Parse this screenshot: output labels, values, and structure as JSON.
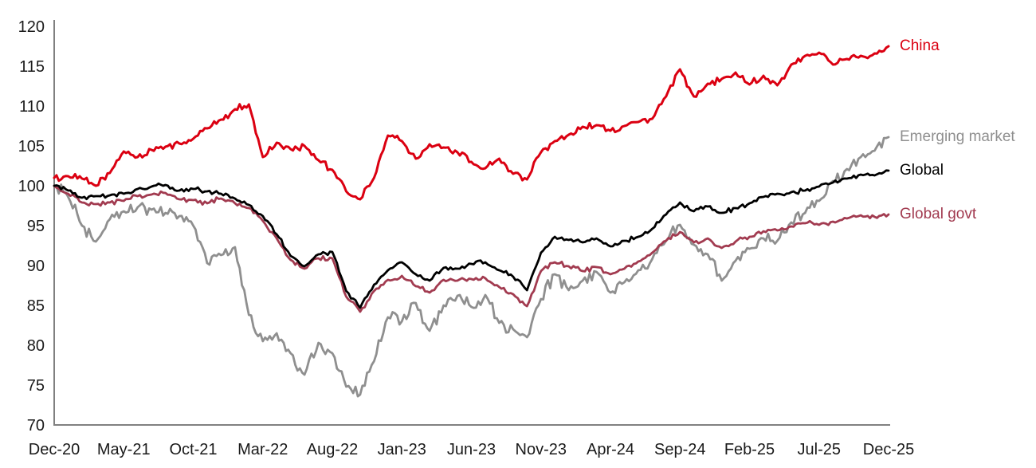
{
  "page": {
    "background": "#ffffff",
    "title": ""
  },
  "chart_data": {
    "type": "line",
    "title": "",
    "grid": false,
    "legend_position": "right-of-line-ends",
    "axis_color": "#808080",
    "tick_label_color": "#1a1a1a",
    "x_axis": {
      "unit": "month",
      "start": "Dec-20",
      "end": "Dec-25",
      "tick_labels": [
        "Dec-20",
        "May-21",
        "Oct-21",
        "Mar-22",
        "Aug-22",
        "Jan-23",
        "Jun-23",
        "Nov-23",
        "Apr-24",
        "Sep-24",
        "Feb-25",
        "Jul-25",
        "Dec-25"
      ],
      "tick_month_indices": [
        0,
        5,
        10,
        15,
        20,
        25,
        30,
        35,
        40,
        45,
        50,
        55,
        60
      ]
    },
    "y_axis": {
      "min": 70,
      "max": 120,
      "tick_labels": [
        "70",
        "75",
        "80",
        "85",
        "90",
        "95",
        "100",
        "105",
        "110",
        "115",
        "120"
      ]
    },
    "frequency": "monthly values from Dec-20 to Dec-25 (index rebased to 100)",
    "series": [
      {
        "name": "China",
        "color": "#db0011",
        "values": [
          101.0,
          101.2,
          100.9,
          100.0,
          101.6,
          104.3,
          103.6,
          104.5,
          104.9,
          105.3,
          105.9,
          107.2,
          108.3,
          109.6,
          110.2,
          103.6,
          105.4,
          104.6,
          105.0,
          103.2,
          102.0,
          99.3,
          98.3,
          101.0,
          106.3,
          105.6,
          103.4,
          105.2,
          104.8,
          104.2,
          103.0,
          102.2,
          103.4,
          101.5,
          100.8,
          104.2,
          105.6,
          106.4,
          107.4,
          107.6,
          106.9,
          107.5,
          108.0,
          108.4,
          111.2,
          114.6,
          111.2,
          112.8,
          113.4,
          114.2,
          112.7,
          113.8,
          112.6,
          115.2,
          116.3,
          116.7,
          115.2,
          115.9,
          116.3,
          116.6,
          117.5
        ]
      },
      {
        "name": "Emerging market",
        "color": "#8f8f8f",
        "values": [
          100.0,
          98.6,
          95.0,
          93.0,
          95.8,
          96.8,
          97.3,
          97.0,
          96.6,
          96.2,
          95.0,
          90.3,
          91.3,
          92.3,
          83.8,
          80.5,
          81.5,
          79.0,
          76.3,
          80.3,
          79.0,
          74.8,
          73.8,
          78.0,
          83.5,
          83.0,
          85.3,
          81.8,
          85.0,
          86.2,
          84.8,
          86.3,
          82.8,
          82.0,
          81.0,
          85.8,
          88.9,
          86.9,
          88.1,
          89.2,
          86.6,
          87.9,
          89.4,
          90.8,
          93.1,
          95.1,
          92.6,
          91.4,
          88.1,
          90.6,
          92.1,
          93.4,
          93.1,
          95.4,
          96.6,
          98.1,
          100.6,
          102.1,
          103.6,
          104.4,
          106.1
        ]
      },
      {
        "name": "Global",
        "color": "#000000",
        "values": [
          100.0,
          99.4,
          98.5,
          98.7,
          98.8,
          99.0,
          99.6,
          99.9,
          100.1,
          99.4,
          99.6,
          99.3,
          99.0,
          98.4,
          97.6,
          96.2,
          93.9,
          91.2,
          89.9,
          91.4,
          91.7,
          86.8,
          84.7,
          87.6,
          89.4,
          90.4,
          88.9,
          88.1,
          89.7,
          89.6,
          90.2,
          90.4,
          89.4,
          88.6,
          86.9,
          91.6,
          93.6,
          93.2,
          92.9,
          93.4,
          92.4,
          93.1,
          93.6,
          94.6,
          96.4,
          97.9,
          96.8,
          97.4,
          96.6,
          97.2,
          97.8,
          98.6,
          99.0,
          99.2,
          99.4,
          99.9,
          100.4,
          100.9,
          101.4,
          101.3,
          101.9
        ]
      },
      {
        "name": "Global govt",
        "color": "#a23b50",
        "values": [
          100.0,
          99.0,
          97.9,
          97.7,
          97.9,
          98.1,
          98.7,
          98.9,
          99.1,
          98.3,
          98.2,
          97.8,
          98.4,
          97.8,
          97.2,
          95.6,
          93.4,
          90.7,
          89.6,
          90.9,
          90.9,
          86.1,
          84.2,
          86.8,
          88.2,
          88.7,
          87.4,
          86.6,
          88.2,
          88.1,
          88.3,
          88.4,
          87.3,
          86.4,
          84.9,
          89.3,
          90.4,
          89.9,
          89.3,
          89.8,
          88.9,
          89.6,
          90.5,
          91.6,
          93.1,
          94.2,
          92.9,
          93.4,
          92.2,
          93.0,
          93.6,
          94.3,
          94.4,
          94.9,
          95.3,
          95.1,
          95.5,
          95.9,
          96.3,
          96.1,
          96.4
        ]
      }
    ]
  }
}
